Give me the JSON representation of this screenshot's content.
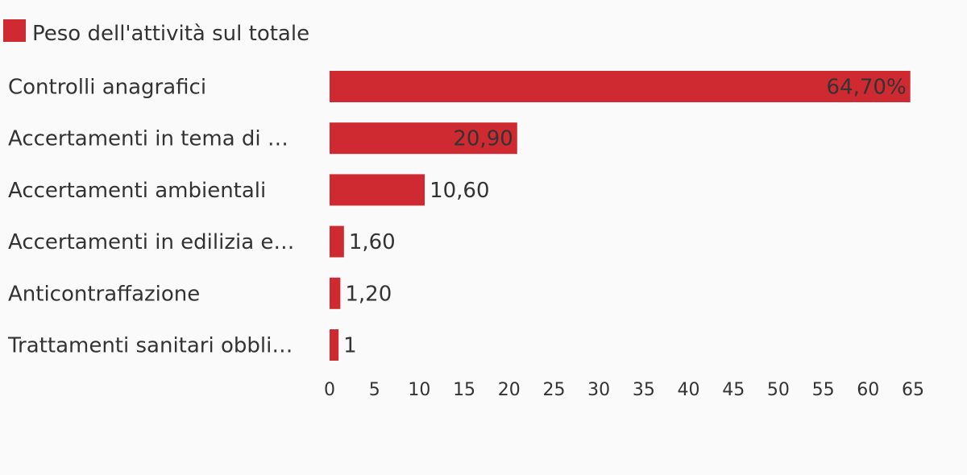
{
  "chart_data": {
    "type": "bar",
    "orientation": "horizontal",
    "categories": [
      "Controlli anagrafici",
      "Accertamenti in tema di …",
      "Accertamenti ambientali",
      "Accertamenti in edilizia e…",
      "Anticontraffazione",
      "Trattamenti sanitari obbli…"
    ],
    "series": [
      {
        "name": "Peso dell'attività sul totale",
        "values": [
          64.7,
          20.9,
          10.6,
          1.6,
          1.2,
          1
        ],
        "labels": [
          "64,70%",
          "20,90",
          "10,60",
          "1,60",
          "1,20",
          "1"
        ],
        "color": "#cf2a31"
      }
    ],
    "xlim": [
      0,
      65
    ],
    "xticks": [
      "0",
      "5",
      "10",
      "15",
      "20",
      "25",
      "30",
      "35",
      "40",
      "45",
      "50",
      "55",
      "60",
      "65"
    ],
    "legend": "top-left",
    "grid": false
  }
}
